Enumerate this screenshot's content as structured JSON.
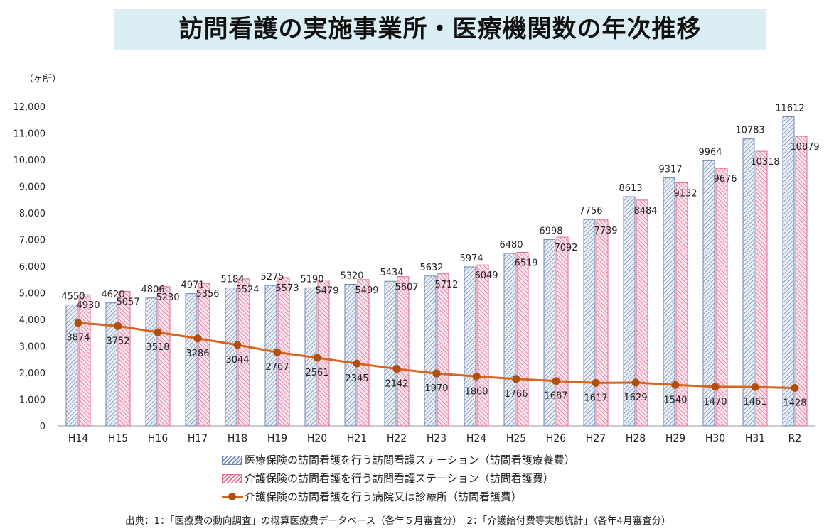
{
  "title": "訪問看護の実施事業所・医療機関数の年次推移",
  "unit_label": "（ヶ所）",
  "legend": {
    "series1": "医療保険の訪問看護を行う訪問看護ステーション（訪問看護療養費）",
    "series2": "介護保険の訪問看護を行う訪問看護ステーション（訪問看護費）",
    "series3": "介護保険の訪問看護を行う病院又は診療所（訪問看護費）"
  },
  "source": "出典：1：「医療費の動向調査」の概算医療費データベース（各年５月審査分）　2：「介護給付費等実態統計」（各年4月審査分）",
  "colors": {
    "series1": "#6f87ad",
    "series2": "#e06a92",
    "line": "#d9641d",
    "marker": "#b24f0c",
    "title_bg": "#dbeef3"
  },
  "chart_data": {
    "type": "bar",
    "title": "訪問看護の実施事業所・医療機関数の年次推移",
    "ylabel": "（ヶ所）",
    "ylim": [
      0,
      12000
    ],
    "yticks": [
      "0",
      "1,000",
      "2,000",
      "3,000",
      "4,000",
      "5,000",
      "6,000",
      "7,000",
      "8,000",
      "9,000",
      "10,000",
      "11,000",
      "12,000"
    ],
    "categories": [
      "H14",
      "H15",
      "H16",
      "H17",
      "H18",
      "H19",
      "H20",
      "H21",
      "H22",
      "H23",
      "H24",
      "H25",
      "H26",
      "H27",
      "H28",
      "H29",
      "H30",
      "H31",
      "R2"
    ],
    "series": [
      {
        "name": "医療保険の訪問看護を行う訪問看護ステーション（訪問看護療養費）",
        "type": "bar",
        "values": [
          4550,
          4620,
          4806,
          4971,
          5184,
          5275,
          5190,
          5320,
          5434,
          5632,
          5974,
          6480,
          6998,
          7756,
          8613,
          9317,
          9964,
          10783,
          11612
        ]
      },
      {
        "name": "介護保険の訪問看護を行う訪問看護ステーション（訪問看護費）",
        "type": "bar",
        "values": [
          4930,
          5057,
          5230,
          5356,
          5524,
          5573,
          5479,
          5499,
          5607,
          5712,
          6049,
          6519,
          7092,
          7739,
          8484,
          9132,
          9676,
          10318,
          10879
        ]
      },
      {
        "name": "介護保険の訪問看護を行う病院又は診療所（訪問看護費）",
        "type": "line",
        "values": [
          3874,
          3752,
          3518,
          3286,
          3044,
          2767,
          2561,
          2345,
          2142,
          1970,
          1860,
          1766,
          1687,
          1617,
          1629,
          1540,
          1470,
          1461,
          1428
        ]
      }
    ]
  }
}
